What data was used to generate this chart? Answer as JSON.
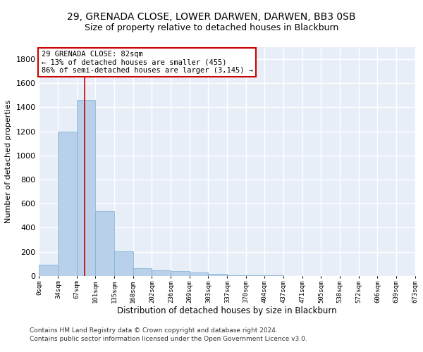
{
  "title": "29, GRENADA CLOSE, LOWER DARWEN, DARWEN, BB3 0SB",
  "subtitle": "Size of property relative to detached houses in Blackburn",
  "xlabel": "Distribution of detached houses by size in Blackburn",
  "ylabel": "Number of detached properties",
  "bar_color": "#b8d0ea",
  "bar_edge_color": "#7aafd4",
  "background_color": "#e8eef8",
  "grid_color": "#ffffff",
  "bin_edges": [
    0,
    34,
    67,
    101,
    135,
    168,
    202,
    236,
    269,
    303,
    337,
    370,
    404,
    437,
    471,
    505,
    538,
    572,
    606,
    639,
    673
  ],
  "bin_labels": [
    "0sqm",
    "34sqm",
    "67sqm",
    "101sqm",
    "135sqm",
    "168sqm",
    "202sqm",
    "236sqm",
    "269sqm",
    "303sqm",
    "337sqm",
    "370sqm",
    "404sqm",
    "437sqm",
    "471sqm",
    "505sqm",
    "538sqm",
    "572sqm",
    "606sqm",
    "639sqm",
    "673sqm"
  ],
  "bar_heights": [
    90,
    1200,
    1460,
    535,
    205,
    65,
    47,
    37,
    28,
    15,
    5,
    5,
    3,
    1,
    0,
    0,
    0,
    0,
    0,
    0
  ],
  "ylim": [
    0,
    1900
  ],
  "yticks": [
    0,
    200,
    400,
    600,
    800,
    1000,
    1200,
    1400,
    1600,
    1800
  ],
  "vline_x": 82,
  "annotation_text": "29 GRENADA CLOSE: 82sqm\n← 13% of detached houses are smaller (455)\n86% of semi-detached houses are larger (3,145) →",
  "annotation_box_color": "#ffffff",
  "annotation_border_color": "#cc0000",
  "vline_color": "#cc0000",
  "footer_line1": "Contains HM Land Registry data © Crown copyright and database right 2024.",
  "footer_line2": "Contains public sector information licensed under the Open Government Licence v3.0.",
  "fig_bg": "#ffffff",
  "title_fontsize": 10,
  "subtitle_fontsize": 9,
  "footer_fontsize": 6.5
}
